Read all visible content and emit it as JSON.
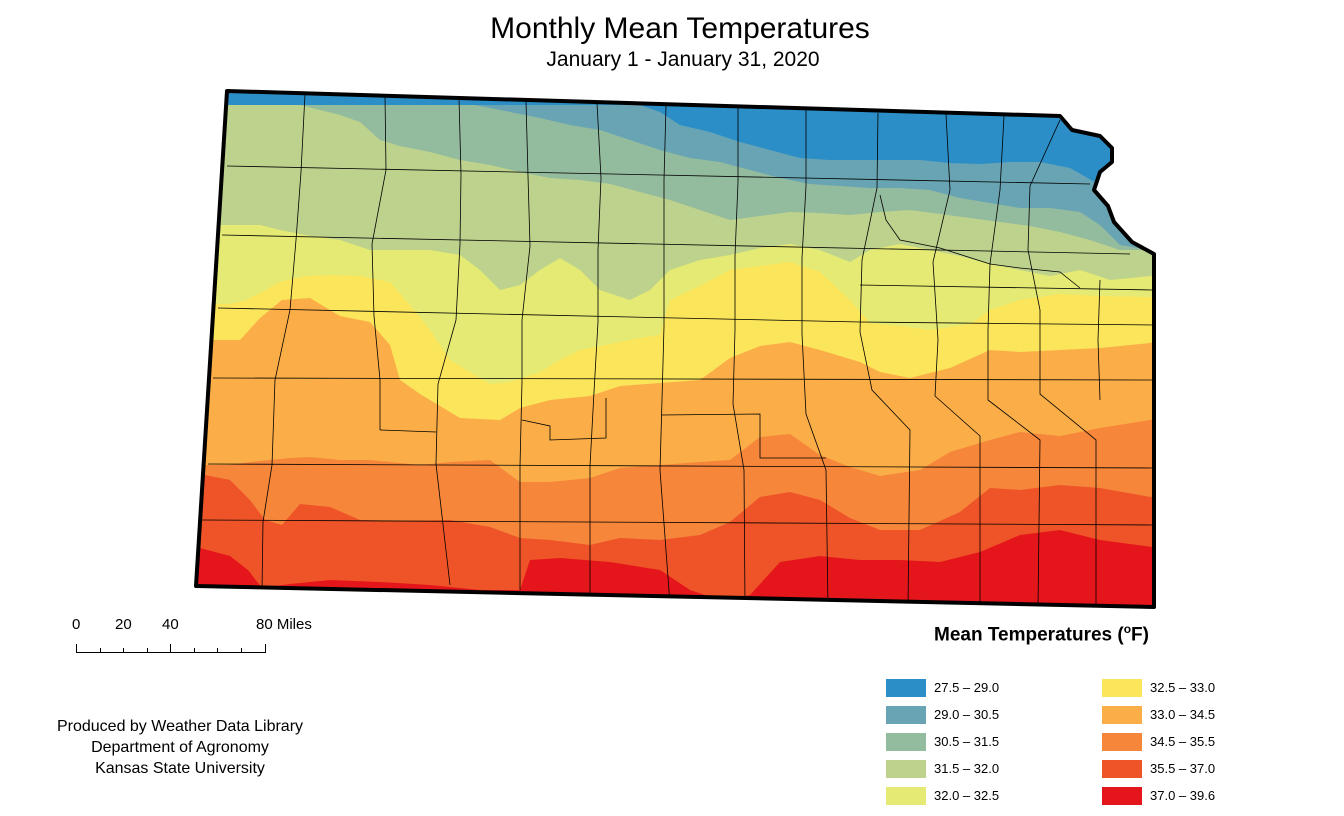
{
  "title": "Monthly Mean Temperatures",
  "subtitle": "January 1 - January 31, 2020",
  "scale": {
    "labels": [
      "0",
      "20",
      "40",
      "80 Miles"
    ]
  },
  "credits": {
    "line1": "Produced by Weather Data Library",
    "line2": "Department of Agronomy",
    "line3": "Kansas State University"
  },
  "legend": {
    "title_main": "Mean Temperatures (",
    "title_sup": "o",
    "title_unit": "F)",
    "classes": [
      {
        "label": "27.5 – 29.0",
        "color": "#2b8ec7"
      },
      {
        "label": "29.0 – 30.5",
        "color": "#68a4b3"
      },
      {
        "label": "30.5 – 31.5",
        "color": "#93bb9d"
      },
      {
        "label": "31.5 – 32.0",
        "color": "#bdd28d"
      },
      {
        "label": "32.0 – 32.5",
        "color": "#e4ea73"
      },
      {
        "label": "32.5 – 33.0",
        "color": "#fbe55b"
      },
      {
        "label": "33.0 – 34.5",
        "color": "#fbae47"
      },
      {
        "label": "34.5 – 35.5",
        "color": "#f5863a"
      },
      {
        "label": "35.5 – 37.0",
        "color": "#ee5427"
      },
      {
        "label": "37.0 – 39.6",
        "color": "#e5161b"
      }
    ]
  }
}
